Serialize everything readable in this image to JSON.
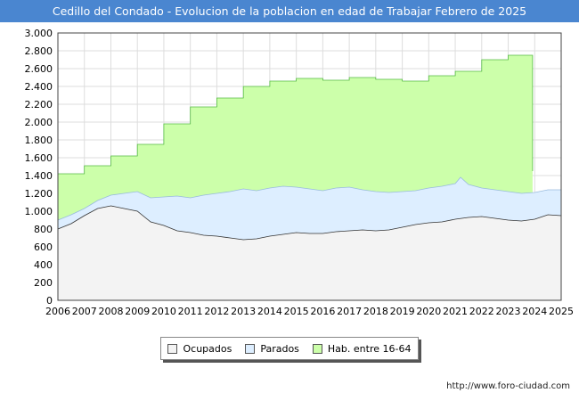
{
  "title": "Cedillo del Condado - Evolucion de la poblacion en edad de Trabajar Febrero de 2025",
  "footer_url": "http://www.foro-ciudad.com",
  "chart_data": {
    "type": "area",
    "xlim": [
      2006,
      2025
    ],
    "ylim": [
      0,
      3000
    ],
    "x_ticks": [
      2006,
      2007,
      2008,
      2009,
      2010,
      2011,
      2012,
      2013,
      2014,
      2015,
      2016,
      2017,
      2018,
      2019,
      2020,
      2021,
      2022,
      2023,
      2024,
      2025
    ],
    "y_ticks": [
      0,
      200,
      400,
      600,
      800,
      1000,
      1200,
      1400,
      1600,
      1800,
      2000,
      2200,
      2400,
      2600,
      2800,
      3000
    ],
    "y_tick_labels": [
      "0",
      "200",
      "400",
      "600",
      "800",
      "1.000",
      "1.200",
      "1.400",
      "1.600",
      "1.800",
      "2.000",
      "2.200",
      "2.400",
      "2.600",
      "2.800",
      "3.000"
    ],
    "grid": true,
    "legend_position": "bottom",
    "series": [
      {
        "name": "Hab. entre 16-64",
        "color": "#ccffaa",
        "line_color": "#55bb44",
        "step": true,
        "x": [
          2006,
          2007,
          2008,
          2009,
          2010,
          2011,
          2012,
          2013,
          2014,
          2015,
          2016,
          2017,
          2018,
          2019,
          2020,
          2021,
          2022,
          2023,
          2023.92
        ],
        "values": [
          1420,
          1510,
          1620,
          1750,
          1980,
          2170,
          2270,
          2400,
          2460,
          2490,
          2470,
          2500,
          2480,
          2460,
          2520,
          2570,
          2700,
          2750,
          1450
        ]
      },
      {
        "name": "Parados",
        "color": "#ddeeff",
        "line_color": "#99bbdd",
        "x": [
          2006,
          2006.5,
          2007,
          2007.5,
          2008,
          2008.5,
          2009,
          2009.5,
          2010,
          2010.5,
          2011,
          2011.5,
          2012,
          2012.5,
          2013,
          2013.5,
          2014,
          2014.5,
          2015,
          2015.5,
          2016,
          2016.5,
          2017,
          2017.5,
          2018,
          2018.5,
          2019,
          2019.5,
          2020,
          2020.5,
          2021,
          2021.2,
          2021.5,
          2022,
          2022.5,
          2023,
          2023.5,
          2024,
          2024.5,
          2025
        ],
        "values": [
          900,
          960,
          1030,
          1120,
          1180,
          1200,
          1220,
          1150,
          1160,
          1170,
          1150,
          1180,
          1200,
          1220,
          1250,
          1230,
          1260,
          1280,
          1270,
          1250,
          1230,
          1260,
          1270,
          1240,
          1220,
          1210,
          1220,
          1230,
          1260,
          1280,
          1310,
          1380,
          1300,
          1260,
          1240,
          1220,
          1200,
          1210,
          1240,
          1240
        ]
      },
      {
        "name": "Ocupados",
        "color": "#f3f3f3",
        "line_color": "#333333",
        "x": [
          2006,
          2006.5,
          2007,
          2007.5,
          2008,
          2008.5,
          2009,
          2009.5,
          2010,
          2010.5,
          2011,
          2011.5,
          2012,
          2012.5,
          2013,
          2013.5,
          2014,
          2014.5,
          2015,
          2015.5,
          2016,
          2016.5,
          2017,
          2017.5,
          2018,
          2018.5,
          2019,
          2019.5,
          2020,
          2020.5,
          2021,
          2021.5,
          2022,
          2022.5,
          2023,
          2023.5,
          2024,
          2024.5,
          2025
        ],
        "values": [
          800,
          860,
          950,
          1030,
          1060,
          1030,
          1000,
          880,
          840,
          780,
          760,
          730,
          720,
          700,
          680,
          690,
          720,
          740,
          760,
          750,
          750,
          770,
          780,
          790,
          780,
          790,
          820,
          850,
          870,
          880,
          910,
          930,
          940,
          920,
          900,
          890,
          910,
          960,
          950
        ]
      }
    ]
  }
}
